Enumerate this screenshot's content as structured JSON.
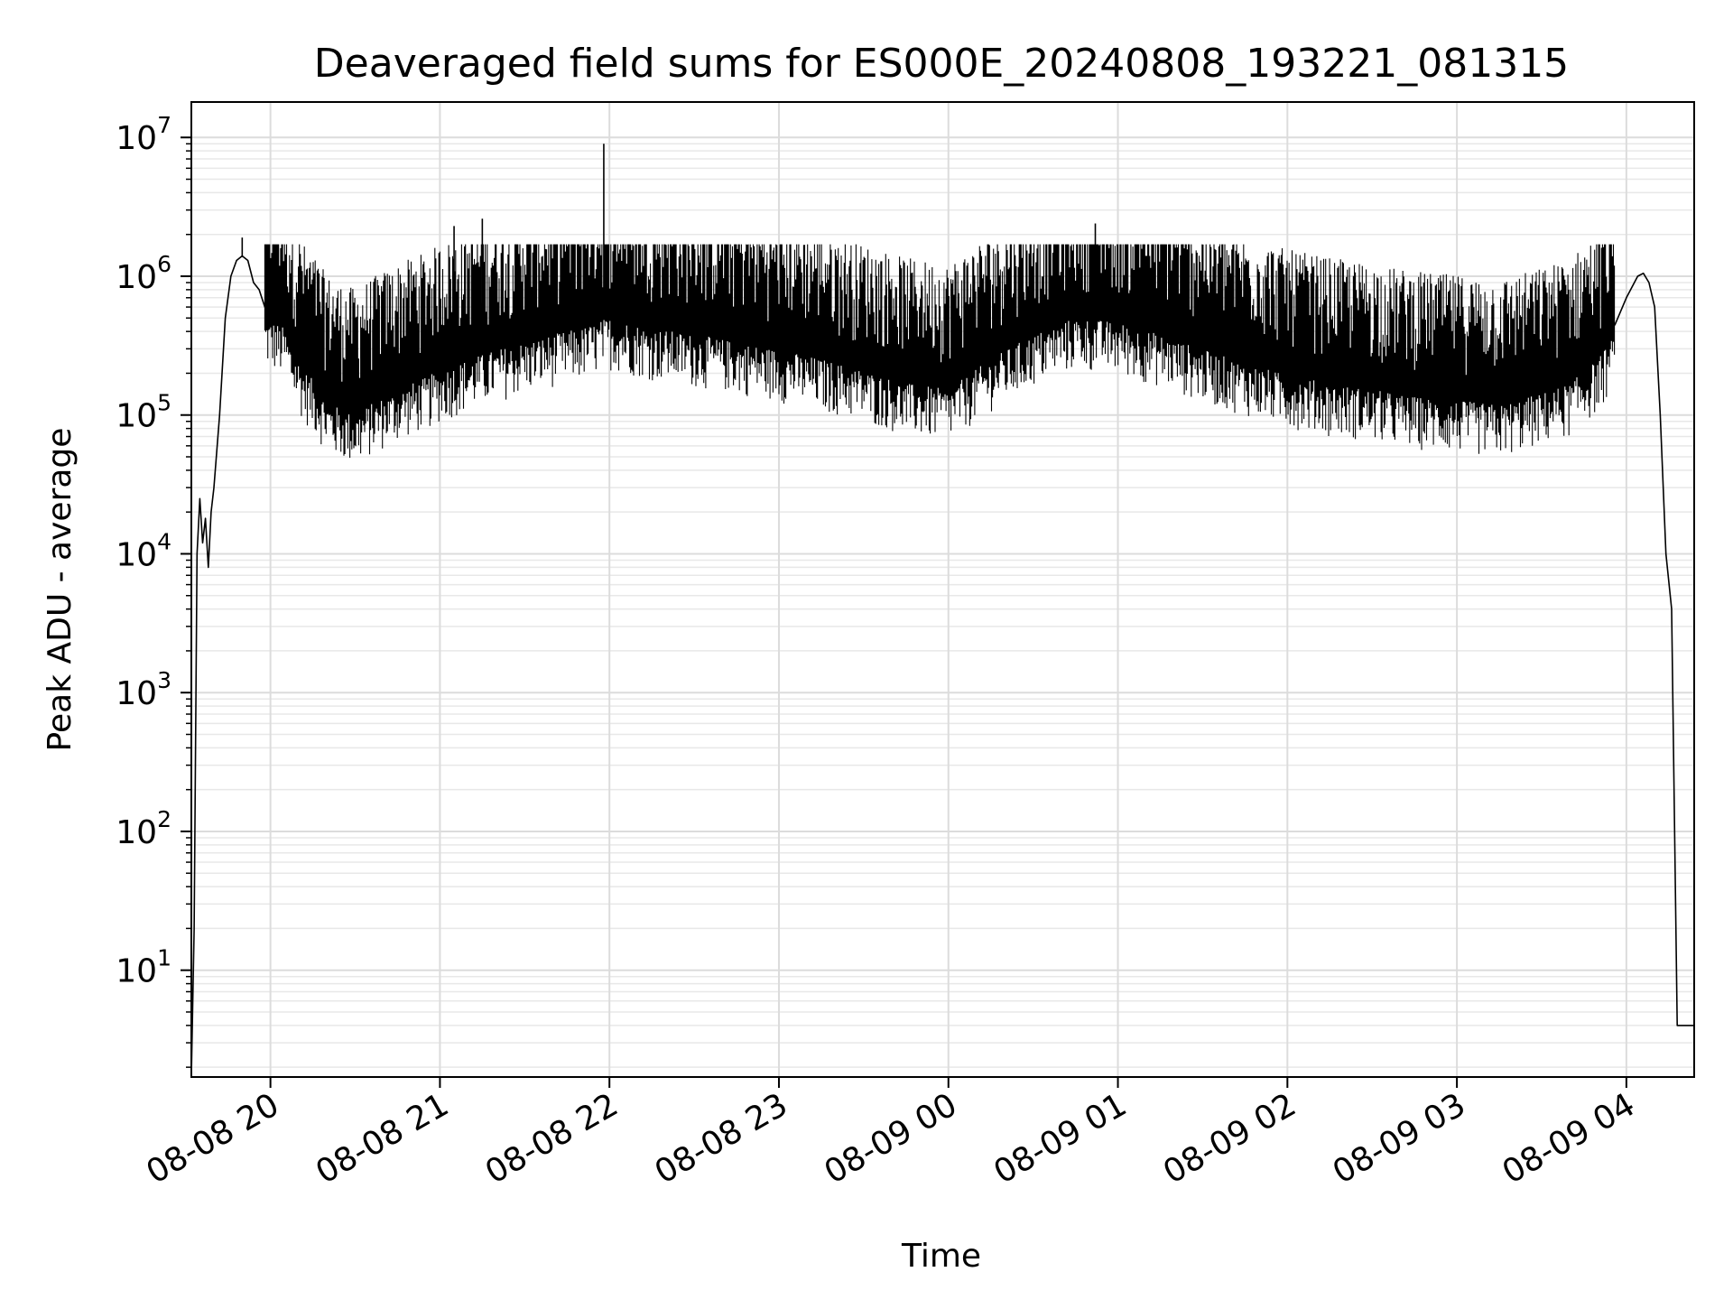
{
  "chart_data": {
    "type": "line",
    "title": "Deaveraged field sums for ES000E_20240808_193221_081315",
    "xlabel": "Time",
    "ylabel": "Peak ADU - average",
    "y_scale": "log",
    "ylim": [
      1.7,
      18000000
    ],
    "xlim": [
      "2024-08-08 19:32",
      "2024-08-09 04:24"
    ],
    "grid": true,
    "legend": "none",
    "line_color": "#000000",
    "x_ticks": [
      {
        "value": "2024-08-08 20:00",
        "label": "08-08 20"
      },
      {
        "value": "2024-08-08 21:00",
        "label": "08-08 21"
      },
      {
        "value": "2024-08-08 22:00",
        "label": "08-08 22"
      },
      {
        "value": "2024-08-08 23:00",
        "label": "08-08 23"
      },
      {
        "value": "2024-08-09 00:00",
        "label": "08-09 00"
      },
      {
        "value": "2024-08-09 01:00",
        "label": "08-09 01"
      },
      {
        "value": "2024-08-09 02:00",
        "label": "08-09 02"
      },
      {
        "value": "2024-08-09 03:00",
        "label": "08-09 03"
      },
      {
        "value": "2024-08-09 04:00",
        "label": "08-09 04"
      }
    ],
    "y_ticks": [
      {
        "value": 10,
        "base": "10",
        "exp": "1"
      },
      {
        "value": 100,
        "base": "10",
        "exp": "2"
      },
      {
        "value": 1000,
        "base": "10",
        "exp": "3"
      },
      {
        "value": 10000,
        "base": "10",
        "exp": "4"
      },
      {
        "value": 100000,
        "base": "10",
        "exp": "5"
      },
      {
        "value": 1000000,
        "base": "10",
        "exp": "6"
      },
      {
        "value": 10000000,
        "base": "10",
        "exp": "7"
      }
    ],
    "series": [
      {
        "x": [
          "2024-08-08 19:32",
          "2024-08-08 19:33",
          "2024-08-08 19:34",
          "2024-08-08 19:35",
          "2024-08-08 19:36",
          "2024-08-08 19:37",
          "2024-08-08 19:38",
          "2024-08-08 19:39",
          "2024-08-08 19:40",
          "2024-08-08 19:42",
          "2024-08-08 19:44",
          "2024-08-08 19:46",
          "2024-08-08 19:48",
          "2024-08-08 19:50",
          "2024-08-08 19:52",
          "2024-08-08 19:54",
          "2024-08-08 19:56",
          "2024-08-08 19:58",
          "2024-08-08 20:02",
          "2024-08-08 20:05",
          "2024-08-08 20:08",
          "2024-08-08 20:12",
          "2024-08-08 20:16",
          "2024-08-08 20:20",
          "2024-08-08 20:25",
          "2024-08-08 20:30",
          "2024-08-08 20:35",
          "2024-08-08 20:40",
          "2024-08-08 20:45",
          "2024-08-08 20:50",
          "2024-08-08 20:55",
          "2024-08-08 21:00",
          "2024-08-08 21:10",
          "2024-08-08 21:20",
          "2024-08-08 21:30",
          "2024-08-08 21:40",
          "2024-08-08 21:50",
          "2024-08-08 22:00",
          "2024-08-08 22:15",
          "2024-08-08 22:30",
          "2024-08-08 22:45",
          "2024-08-08 23:00",
          "2024-08-08 23:15",
          "2024-08-08 23:30",
          "2024-08-08 23:45",
          "2024-08-09 00:00",
          "2024-08-09 00:15",
          "2024-08-09 00:30",
          "2024-08-09 00:45",
          "2024-08-09 01:00",
          "2024-08-09 01:15",
          "2024-08-09 01:30",
          "2024-08-09 01:45",
          "2024-08-09 02:00",
          "2024-08-09 02:15",
          "2024-08-09 02:30",
          "2024-08-09 02:45",
          "2024-08-09 03:00",
          "2024-08-09 03:15",
          "2024-08-09 03:30",
          "2024-08-09 03:40",
          "2024-08-09 03:50",
          "2024-08-09 03:56",
          "2024-08-09 04:00",
          "2024-08-09 04:04",
          "2024-08-09 04:06",
          "2024-08-09 04:08",
          "2024-08-09 04:10",
          "2024-08-09 04:12",
          "2024-08-09 04:14",
          "2024-08-09 04:16",
          "2024-08-09 04:18",
          "2024-08-09 04:20",
          "2024-08-09 04:24"
        ],
        "y": [
          1.7,
          20,
          10000,
          25000,
          12000,
          18000,
          8000,
          20000,
          30000,
          100000,
          500000,
          1000000,
          1300000,
          1400000,
          1300000,
          900000,
          800000,
          600000,
          550000,
          500000,
          350000,
          250000,
          200000,
          150000,
          130000,
          120000,
          140000,
          160000,
          180000,
          200000,
          220000,
          250000,
          300000,
          350000,
          400000,
          450000,
          500000,
          600000,
          500000,
          450000,
          400000,
          350000,
          300000,
          250000,
          200000,
          180000,
          300000,
          450000,
          600000,
          550000,
          450000,
          350000,
          280000,
          230000,
          200000,
          180000,
          160000,
          150000,
          140000,
          170000,
          200000,
          300000,
          450000,
          700000,
          1000000,
          1050000,
          900000,
          600000,
          100000,
          10000,
          4000,
          4,
          4,
          4
        ]
      }
    ],
    "spikes": [
      {
        "x": "2024-08-08 21:58",
        "y": 9000000
      },
      {
        "x": "2024-08-08 21:15",
        "y": 2600000
      },
      {
        "x": "2024-08-09 00:52",
        "y": 2400000
      },
      {
        "x": "2024-08-08 21:05",
        "y": 2300000
      },
      {
        "x": "2024-08-08 19:50",
        "y": 1900000
      }
    ]
  }
}
